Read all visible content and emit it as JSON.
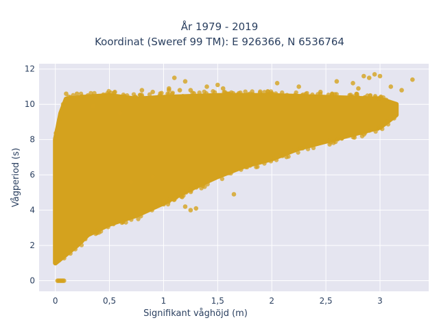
{
  "chart_data": {
    "type": "scatter",
    "title": "År 1979 - 2019",
    "subtitle": "Koordinat (Sweref 99 TM): E 926366, N 6536764",
    "xlabel": "Signifikant våghöjd (m)",
    "ylabel": "Vågperiod (s)",
    "xlim": [
      -0.15,
      3.45
    ],
    "ylim": [
      -0.6,
      12.3
    ],
    "x_ticks": [
      0,
      0.5,
      1,
      1.5,
      2,
      2.5,
      3
    ],
    "x_tick_labels": [
      "0",
      "0,5",
      "1",
      "1,5",
      "2",
      "2,5",
      "3"
    ],
    "y_ticks": [
      0,
      2,
      4,
      6,
      8,
      10,
      12
    ],
    "y_tick_labels": [
      "0",
      "2",
      "4",
      "6",
      "8",
      "10",
      "12"
    ],
    "grid": true,
    "marker_color": "#D4A21E",
    "plot_background": "#E5E5F0",
    "series": [
      {
        "name": "",
        "envelope": {
          "lower": [
            [
              0.0,
              1.0
            ],
            [
              0.1,
              1.5
            ],
            [
              0.2,
              2.0
            ],
            [
              0.3,
              2.6
            ],
            [
              0.5,
              3.2
            ],
            [
              0.75,
              3.7
            ],
            [
              1.0,
              4.4
            ],
            [
              1.25,
              5.2
            ],
            [
              1.5,
              5.9
            ],
            [
              1.75,
              6.5
            ],
            [
              2.0,
              6.9
            ],
            [
              2.25,
              7.5
            ],
            [
              2.5,
              7.9
            ],
            [
              2.75,
              8.3
            ],
            [
              3.0,
              8.7
            ],
            [
              3.15,
              9.4
            ]
          ],
          "upper": [
            [
              0.0,
              8.0
            ],
            [
              0.05,
              9.5
            ],
            [
              0.1,
              10.3
            ],
            [
              0.25,
              10.4
            ],
            [
              0.5,
              10.5
            ],
            [
              0.75,
              10.3
            ],
            [
              1.0,
              10.4
            ],
            [
              1.5,
              10.5
            ],
            [
              2.0,
              10.5
            ],
            [
              2.5,
              10.4
            ],
            [
              3.0,
              10.3
            ],
            [
              3.15,
              10.0
            ]
          ]
        },
        "points": [
          [
            0.02,
            0.0
          ],
          [
            0.03,
            0.0
          ],
          [
            0.04,
            0.0
          ],
          [
            0.05,
            0.0
          ],
          [
            0.06,
            0.0
          ],
          [
            0.07,
            0.0
          ],
          [
            0.08,
            0.0
          ],
          [
            0.1,
            10.6
          ],
          [
            0.2,
            10.6
          ],
          [
            0.3,
            10.5
          ],
          [
            0.55,
            10.7
          ],
          [
            0.8,
            10.8
          ],
          [
            0.9,
            10.7
          ],
          [
            1.05,
            10.9
          ],
          [
            1.05,
            10.8
          ],
          [
            1.1,
            11.5
          ],
          [
            1.15,
            10.8
          ],
          [
            1.2,
            11.3
          ],
          [
            1.25,
            10.8
          ],
          [
            1.4,
            11.0
          ],
          [
            1.5,
            11.1
          ],
          [
            1.55,
            10.9
          ],
          [
            1.6,
            10.6
          ],
          [
            1.8,
            10.6
          ],
          [
            2.0,
            10.6
          ],
          [
            2.05,
            11.2
          ],
          [
            2.25,
            11.0
          ],
          [
            2.45,
            10.7
          ],
          [
            2.6,
            11.3
          ],
          [
            2.75,
            11.2
          ],
          [
            2.8,
            10.9
          ],
          [
            2.85,
            11.6
          ],
          [
            2.9,
            11.5
          ],
          [
            2.95,
            11.7
          ],
          [
            3.0,
            11.6
          ],
          [
            3.1,
            11.0
          ],
          [
            3.2,
            10.8
          ],
          [
            3.3,
            11.4
          ],
          [
            0.9,
            5.9
          ],
          [
            1.0,
            4.5
          ],
          [
            1.1,
            4.6
          ],
          [
            1.2,
            4.2
          ],
          [
            1.25,
            4.0
          ],
          [
            1.3,
            4.1
          ],
          [
            1.65,
            4.9
          ],
          [
            0.7,
            5.6
          ],
          [
            0.35,
            9.9
          ],
          [
            0.6,
            9.5
          ]
        ]
      }
    ]
  }
}
